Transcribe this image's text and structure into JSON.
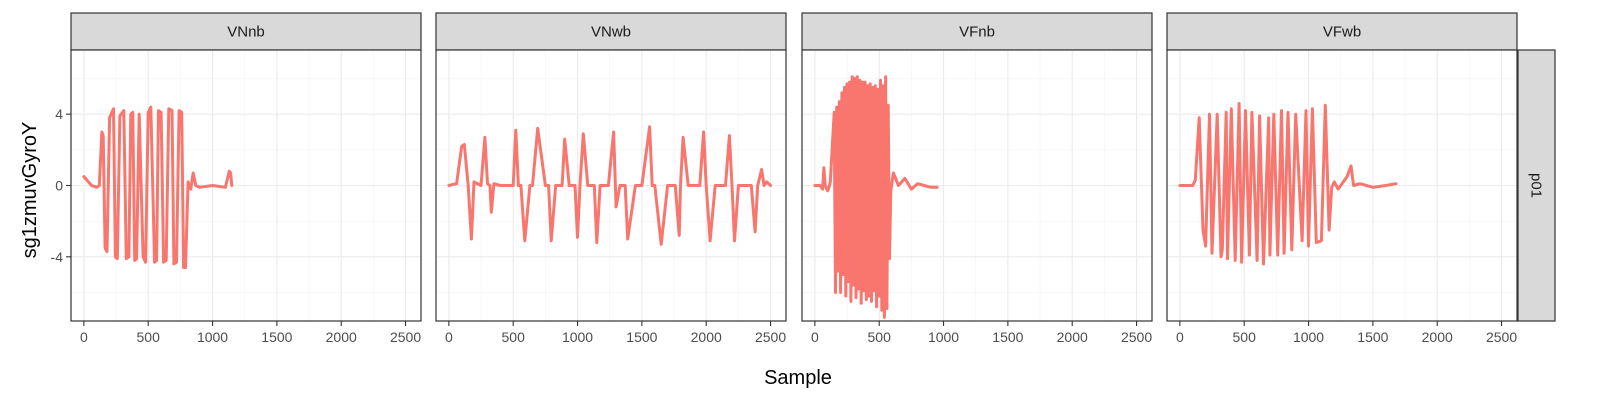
{
  "chart_data": {
    "type": "line",
    "xlabel": "Sample",
    "ylabel": "sg1zmuvGyroY",
    "row_facet": "p01",
    "xlim": [
      -100,
      2620
    ],
    "ylim": [
      -7.6,
      7.6
    ],
    "x_ticks": [
      0,
      500,
      1000,
      1500,
      2000,
      2500
    ],
    "y_ticks": [
      -4,
      0,
      4
    ],
    "grid": true,
    "line_color": "#f8766d",
    "panels": [
      {
        "label": "VNnb",
        "x": [
          0,
          60,
          100,
          120,
          140,
          150,
          165,
          180,
          200,
          230,
          245,
          260,
          280,
          310,
          330,
          350,
          365,
          380,
          395,
          410,
          430,
          460,
          480,
          500,
          520,
          550,
          565,
          580,
          600,
          620,
          640,
          660,
          685,
          700,
          720,
          740,
          760,
          775,
          790,
          810,
          830,
          850,
          870,
          900,
          1000,
          1100,
          1130,
          1140,
          1150
        ],
        "y": [
          0.5,
          0,
          -0.1,
          0,
          3,
          2.8,
          -3.5,
          -3.7,
          3.8,
          4.3,
          -4,
          -4.1,
          3.9,
          4.2,
          -4.1,
          -4,
          4,
          4.1,
          -4.2,
          -4.1,
          4,
          -4,
          -4.3,
          4.1,
          4.4,
          -4.3,
          -4.2,
          4.2,
          4.1,
          -4.3,
          -4.2,
          4.3,
          4.2,
          -4.4,
          -4.3,
          4.2,
          4.1,
          -4.6,
          -4.6,
          0.2,
          -0.2,
          0.7,
          0,
          -0.1,
          0,
          -0.1,
          0.8,
          0.7,
          0
        ]
      },
      {
        "label": "VNwb",
        "x": [
          0,
          60,
          100,
          120,
          150,
          175,
          195,
          250,
          280,
          300,
          320,
          330,
          350,
          400,
          450,
          500,
          520,
          540,
          560,
          590,
          630,
          650,
          690,
          750,
          775,
          795,
          830,
          880,
          900,
          935,
          980,
          1000,
          1020,
          1045,
          1080,
          1130,
          1150,
          1175,
          1195,
          1240,
          1280,
          1300,
          1330,
          1370,
          1390,
          1450,
          1500,
          1560,
          1580,
          1600,
          1650,
          1700,
          1760,
          1790,
          1800,
          1820,
          1860,
          1900,
          1950,
          1980,
          2000,
          2030,
          2070,
          2100,
          2150,
          2180,
          2200,
          2220,
          2250,
          2300,
          2350,
          2380,
          2400,
          2430,
          2450,
          2470,
          2500
        ],
        "y": [
          0,
          0.1,
          2.2,
          2.3,
          0,
          -3,
          0.2,
          0,
          2.7,
          0.1,
          0,
          -1.5,
          0.1,
          0,
          0,
          0,
          3.1,
          0,
          0,
          -3.1,
          0,
          0,
          3.2,
          0,
          0,
          -3.1,
          0,
          0,
          2.6,
          0,
          0,
          -2.9,
          0.1,
          2.9,
          0,
          0,
          -3.2,
          0,
          0,
          0,
          3,
          -1.2,
          0,
          0,
          -3,
          0,
          0,
          3.3,
          0,
          0,
          -3.3,
          0,
          0,
          -2.8,
          0,
          2.7,
          0,
          0,
          0,
          3,
          0,
          -3.1,
          0,
          0,
          0,
          2.8,
          0,
          -3.1,
          0,
          0,
          0,
          -2.6,
          0,
          0.9,
          0,
          0.2,
          0
        ]
      },
      {
        "label": "VFnb",
        "x": [
          0,
          40,
          60,
          70,
          80,
          100,
          110,
          120,
          150,
          160,
          170,
          180,
          190,
          200,
          210,
          220,
          230,
          240,
          250,
          260,
          270,
          280,
          290,
          300,
          310,
          320,
          330,
          340,
          350,
          360,
          370,
          380,
          390,
          400,
          410,
          420,
          430,
          440,
          450,
          460,
          470,
          480,
          490,
          500,
          510,
          520,
          530,
          540,
          550,
          560,
          570,
          580,
          590,
          610,
          650,
          700,
          750,
          800,
          850,
          900,
          950
        ],
        "y": [
          0,
          0,
          -0.2,
          1,
          0,
          -0.3,
          -0.1,
          0.2,
          4.1,
          -6,
          4.4,
          -4.8,
          4.7,
          -6,
          5.2,
          -5,
          5.5,
          -6.2,
          5.7,
          -5.4,
          5.8,
          -6.5,
          6.1,
          -5.6,
          6,
          -6.3,
          6.1,
          -5.8,
          5.9,
          -6.6,
          5.8,
          -5.9,
          5.8,
          -6.4,
          5.6,
          -6.2,
          5.7,
          -6.5,
          5.5,
          -5.9,
          5.6,
          -6.8,
          5.4,
          -6.2,
          5.9,
          -7,
          5.6,
          -7.4,
          6.1,
          -6.9,
          4.5,
          -4.1,
          -0.3,
          0.7,
          0,
          0.4,
          -0.2,
          0.1,
          0,
          -0.1,
          -0.1
        ]
      },
      {
        "label": "VFwb",
        "x": [
          0,
          100,
          120,
          150,
          180,
          200,
          230,
          250,
          290,
          320,
          330,
          360,
          370,
          400,
          430,
          460,
          480,
          510,
          540,
          560,
          600,
          620,
          650,
          690,
          700,
          730,
          760,
          790,
          810,
          840,
          870,
          900,
          950,
          980,
          1000,
          1030,
          1060,
          1100,
          1130,
          1160,
          1180,
          1200,
          1230,
          1300,
          1330,
          1350,
          1400,
          1500,
          1600,
          1680
        ],
        "y": [
          0,
          0,
          0.3,
          3.8,
          -2.5,
          -3.4,
          4,
          -3.8,
          4,
          -4,
          -3.6,
          4.1,
          -4.1,
          4.3,
          -4.2,
          4.6,
          -4.3,
          4.2,
          -3.9,
          4.1,
          -4.2,
          3.9,
          -4.4,
          3.8,
          -3.9,
          4,
          -3.9,
          4.2,
          -3.8,
          4.1,
          -3.6,
          4,
          -3.1,
          4.2,
          -3.4,
          4.3,
          -3.2,
          -3.1,
          4.5,
          -2.5,
          -0.1,
          0.2,
          -0.2,
          0.5,
          1.1,
          0,
          0.1,
          -0.1,
          0,
          0.1
        ]
      }
    ]
  }
}
